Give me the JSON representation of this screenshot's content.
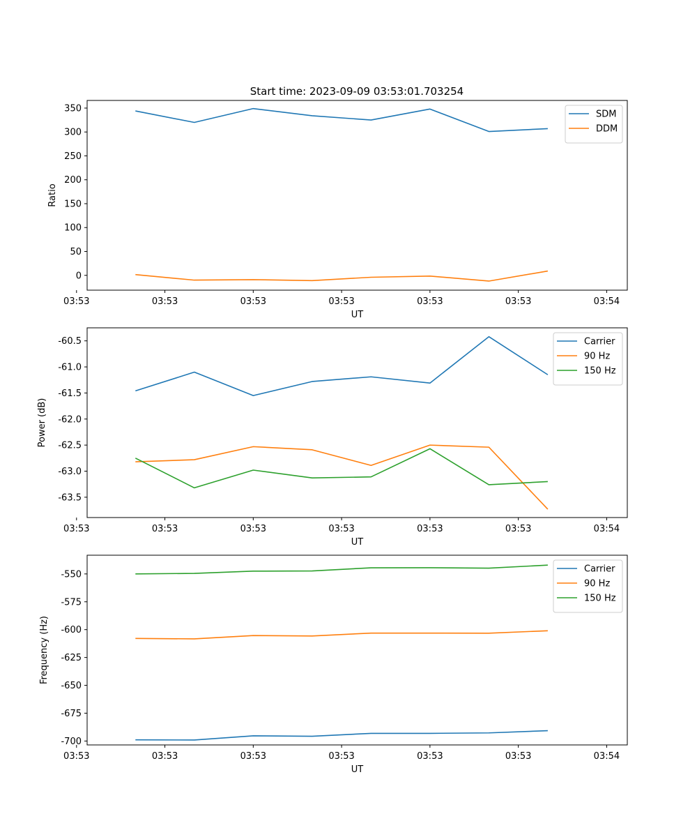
{
  "figure": {
    "title": "Start time: 2023-09-09 03:53:01.703254"
  },
  "chart_data": [
    {
      "type": "line",
      "id": "ratio",
      "xlabel": "UT",
      "ylabel": "Ratio",
      "x": [
        1,
        2,
        3,
        4,
        5,
        6,
        7,
        8
      ],
      "xlim": [
        0.18,
        9.35
      ],
      "xticks": [
        0,
        1.5,
        3,
        4.5,
        6,
        7.5,
        9
      ],
      "xtick_labels": [
        "03:53",
        "03:53",
        "03:53",
        "03:53",
        "03:53",
        "03:53",
        "03:54"
      ],
      "ylim": [
        -31,
        366
      ],
      "yticks": [
        0,
        50,
        100,
        150,
        200,
        250,
        300,
        350
      ],
      "ytick_labels": [
        "0",
        "50",
        "100",
        "150",
        "200",
        "250",
        "300",
        "350"
      ],
      "series": [
        {
          "name": "SDM",
          "color": "#1f77b4",
          "values": [
            344,
            320,
            349,
            334,
            325,
            348,
            301,
            307
          ]
        },
        {
          "name": "DDM",
          "color": "#ff7f0e",
          "values": [
            1.5,
            -10,
            -9,
            -11,
            -4,
            -1.5,
            -12,
            9
          ]
        }
      ],
      "legend": "top-right"
    },
    {
      "type": "line",
      "id": "power",
      "xlabel": "UT",
      "ylabel": "Power (dB)",
      "x": [
        1,
        2,
        3,
        4,
        5,
        6,
        7,
        8
      ],
      "xlim": [
        0.18,
        9.35
      ],
      "xticks": [
        0,
        1.5,
        3,
        4.5,
        6,
        7.5,
        9
      ],
      "xtick_labels": [
        "03:53",
        "03:53",
        "03:53",
        "03:53",
        "03:53",
        "03:53",
        "03:54"
      ],
      "ylim": [
        -63.89,
        -60.25
      ],
      "yticks": [
        -60.5,
        -61.0,
        -61.5,
        -62.0,
        -62.5,
        -63.0,
        -63.5
      ],
      "ytick_labels": [
        "-60.5",
        "-61.0",
        "-61.5",
        "-62.0",
        "-62.5",
        "-63.0",
        "-63.5"
      ],
      "series": [
        {
          "name": "Carrier",
          "color": "#1f77b4",
          "values": [
            -61.46,
            -61.1,
            -61.55,
            -61.28,
            -61.19,
            -61.31,
            -60.42,
            -61.15
          ]
        },
        {
          "name": "90 Hz",
          "color": "#ff7f0e",
          "values": [
            -62.82,
            -62.78,
            -62.53,
            -62.59,
            -62.89,
            -62.5,
            -62.54,
            -63.73
          ]
        },
        {
          "name": "150 Hz",
          "color": "#2ca02c",
          "values": [
            -62.75,
            -63.32,
            -62.98,
            -63.13,
            -63.11,
            -62.57,
            -63.26,
            -63.2
          ]
        }
      ],
      "legend": "top-right"
    },
    {
      "type": "line",
      "id": "frequency",
      "xlabel": "UT",
      "ylabel": "Frequency (Hz)",
      "x": [
        1,
        2,
        3,
        4,
        5,
        6,
        7,
        8
      ],
      "xlim": [
        0.18,
        9.35
      ],
      "xticks": [
        0,
        1.5,
        3,
        4.5,
        6,
        7.5,
        9
      ],
      "xtick_labels": [
        "03:53",
        "03:53",
        "03:53",
        "03:53",
        "03:53",
        "03:53",
        "03:54"
      ],
      "ylim": [
        -703.5,
        -533.2
      ],
      "yticks": [
        -550,
        -575,
        -600,
        -625,
        -650,
        -675,
        -700
      ],
      "ytick_labels": [
        "-550",
        "-575",
        "-600",
        "-625",
        "-650",
        "-675",
        "-700"
      ],
      "series": [
        {
          "name": "Carrier",
          "color": "#1f77b4",
          "values": [
            -698.9,
            -699.1,
            -695.3,
            -695.7,
            -693.1,
            -693.1,
            -692.7,
            -690.7
          ]
        },
        {
          "name": "90 Hz",
          "color": "#ff7f0e",
          "values": [
            -607.9,
            -608.3,
            -605.3,
            -605.7,
            -603.1,
            -603.1,
            -603.2,
            -601.0
          ]
        },
        {
          "name": "150 Hz",
          "color": "#2ca02c",
          "values": [
            -550.0,
            -549.5,
            -547.5,
            -547.3,
            -544.5,
            -544.4,
            -544.8,
            -542.1
          ]
        }
      ],
      "legend": "top-right"
    }
  ]
}
